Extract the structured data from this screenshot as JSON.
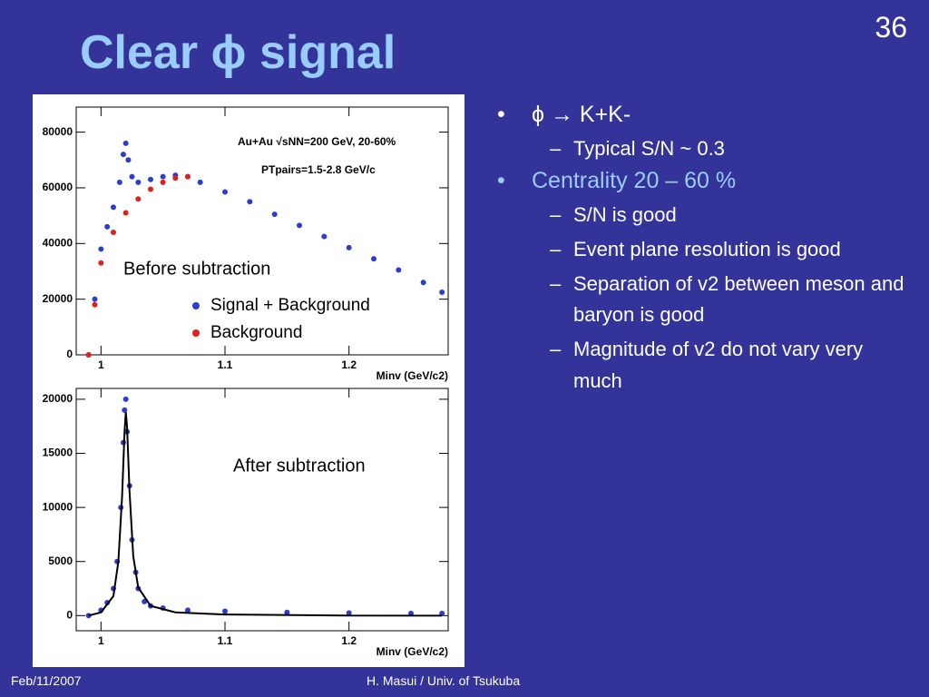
{
  "slide": {
    "title": "Clear ϕ signal",
    "page_number": "36",
    "bullets": [
      {
        "text": "ϕ → K+K-",
        "sub": [
          "Typical S/N ~ 0.3"
        ]
      },
      {
        "text": "Centrality 20 – 60 %",
        "sub": [
          "S/N is good",
          "Event plane resolution is good",
          "Separation of v2 between meson and baryon is good",
          "Magnitude of v2 do not vary very much"
        ]
      }
    ],
    "footer_left": "Feb/11/2007",
    "footer_center": "H. Masui / Univ. of Tsukuba"
  },
  "chart_data": [
    {
      "type": "scatter",
      "x_label": "Minv (GeV/c2)",
      "annotations": [
        "Au+Au √sNN=200 GeV, 20-60%",
        "PTpairs=1.5-2.8 GeV/c",
        "Before subtraction"
      ],
      "xlim": [
        0.98,
        1.28
      ],
      "xticks": [
        1,
        1.1,
        1.2
      ],
      "ylim": [
        0,
        89000
      ],
      "yticks": [
        0,
        20000,
        40000,
        60000,
        80000
      ],
      "legend": "center",
      "series": [
        {
          "name": "Signal + Background",
          "color": "#2b3cd0",
          "x": [
            0.99,
            0.995,
            1.0,
            1.005,
            1.01,
            1.015,
            1.018,
            1.02,
            1.022,
            1.025,
            1.03,
            1.04,
            1.05,
            1.06,
            1.07,
            1.08,
            1.1,
            1.12,
            1.14,
            1.16,
            1.18,
            1.2,
            1.22,
            1.24,
            1.26,
            1.275
          ],
          "values": [
            0,
            20000,
            38000,
            46000,
            53000,
            62000,
            72000,
            76000,
            70000,
            64000,
            62000,
            63000,
            64000,
            64500,
            64000,
            62000,
            58500,
            55000,
            50500,
            46500,
            42500,
            38500,
            34500,
            30500,
            26000,
            22500
          ]
        },
        {
          "name": "Background",
          "color": "#e0201c",
          "x": [
            0.99,
            0.995,
            1.0,
            1.01,
            1.02,
            1.03,
            1.04,
            1.05,
            1.06,
            1.07
          ],
          "values": [
            0,
            18000,
            33000,
            44000,
            51000,
            56000,
            59500,
            62000,
            63500,
            64000
          ]
        }
      ]
    },
    {
      "type": "scatter",
      "x_label": "Minv (GeV/c2)",
      "annotations": [
        "After subtraction"
      ],
      "xlim": [
        0.98,
        1.28
      ],
      "xticks": [
        1,
        1.1,
        1.2
      ],
      "ylim": [
        -1400,
        21000
      ],
      "yticks": [
        0,
        5000,
        10000,
        15000,
        20000
      ],
      "series": [
        {
          "color": "#2b3cd0",
          "x": [
            0.99,
            1.0,
            1.005,
            1.01,
            1.013,
            1.016,
            1.018,
            1.019,
            1.02,
            1.021,
            1.023,
            1.025,
            1.028,
            1.03,
            1.035,
            1.04,
            1.05,
            1.07,
            1.1,
            1.15,
            1.2,
            1.25,
            1.275
          ],
          "values": [
            0,
            500,
            1200,
            2500,
            5000,
            10000,
            16000,
            19000,
            20000,
            17000,
            12000,
            7000,
            4000,
            2500,
            1300,
            900,
            700,
            500,
            400,
            300,
            250,
            200,
            200
          ]
        },
        {
          "color": "#000000",
          "mode": "line",
          "x": [
            0.99,
            1.0,
            1.01,
            1.014,
            1.017,
            1.019,
            1.02,
            1.021,
            1.023,
            1.026,
            1.03,
            1.04,
            1.06,
            1.1,
            1.2,
            1.275
          ],
          "values": [
            0,
            300,
            1800,
            5000,
            11000,
            17000,
            18800,
            17500,
            11500,
            5500,
            2600,
            900,
            300,
            100,
            0,
            0
          ]
        }
      ]
    }
  ]
}
